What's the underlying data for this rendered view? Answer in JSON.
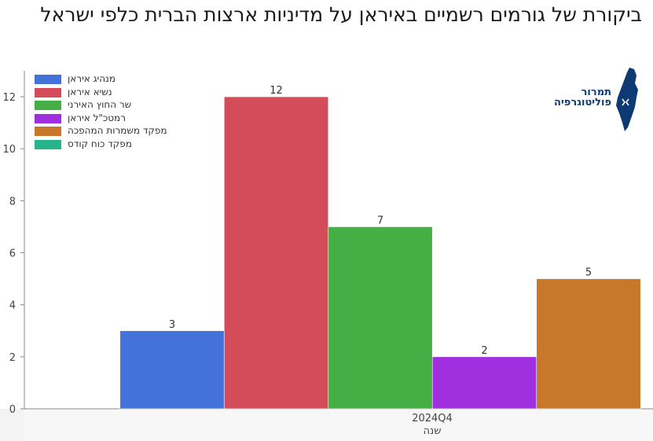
{
  "title": "ביקורת של גורמים רשמיים באיראן על מדיניות ארצות הברית כלפי ישראל",
  "logo": {
    "line1": "תמרור",
    "line2": "פוליטוגרפיה"
  },
  "chart_data": {
    "type": "bar",
    "title": "ביקורת של גורמים רשמיים באיראן על מדיניות ארצות הברית כלפי ישראל",
    "categories": [
      "2024Q4"
    ],
    "xlabel": "שנה",
    "ylabel": "",
    "ylim": [
      0,
      13
    ],
    "yticks": [
      0,
      2,
      4,
      6,
      8,
      10,
      12
    ],
    "grid": false,
    "legend_position": "top-left",
    "series": [
      {
        "name": "מנהיג איראן",
        "values": [
          3
        ],
        "color": "#4472db"
      },
      {
        "name": "נשיא איראן",
        "values": [
          12
        ],
        "color": "#d44b5a"
      },
      {
        "name": "שר החוץ האירני",
        "values": [
          7
        ],
        "color": "#45ae45"
      },
      {
        "name": "רמטכ\"ל איראן",
        "values": [
          2
        ],
        "color": "#a02fe0"
      },
      {
        "name": "מפקד משמרות המהפכה",
        "values": [
          5
        ],
        "color": "#c8782b"
      },
      {
        "name": "מפקד כוח קודס",
        "values": [
          0
        ],
        "color": "#28b38a"
      }
    ]
  }
}
